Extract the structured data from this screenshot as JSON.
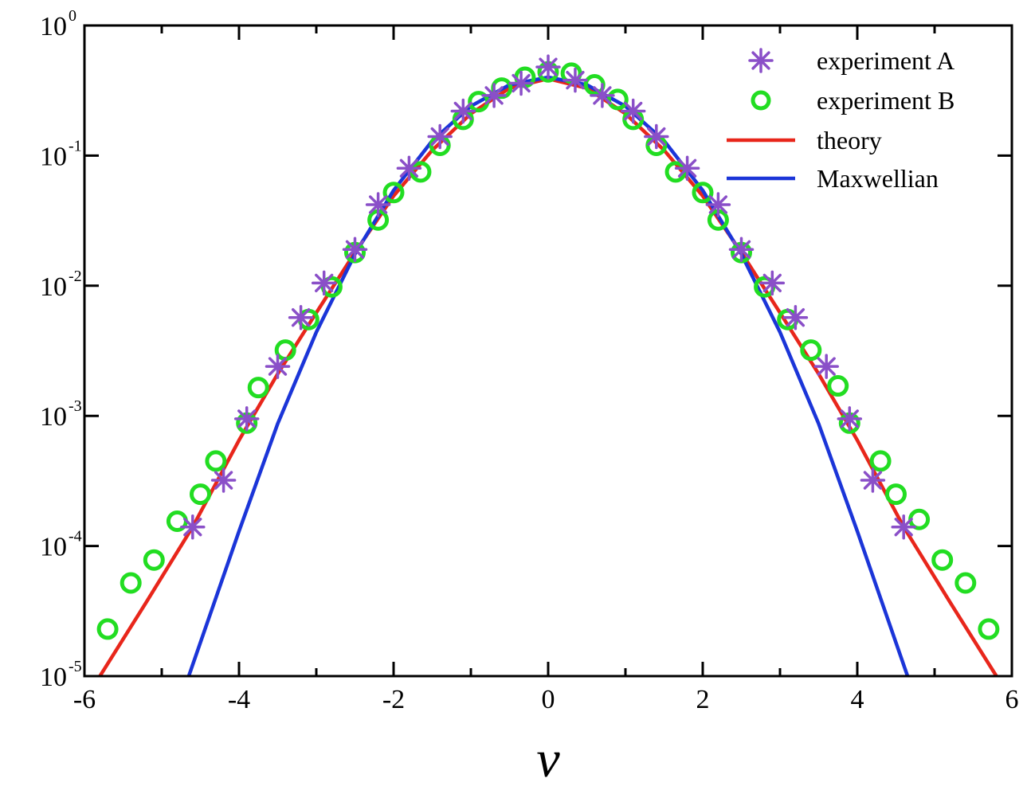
{
  "chart_data": {
    "type": "scatter",
    "title": "",
    "xlabel": "v",
    "ylabel": "",
    "xlim": [
      -6,
      6
    ],
    "ylim": [
      1e-05,
      1
    ],
    "yscale": "log",
    "grid": false,
    "legend_position": "top-right",
    "x_ticks": [
      {
        "value": -6,
        "label": "-6"
      },
      {
        "value": -4,
        "label": "-4"
      },
      {
        "value": -2,
        "label": "-2"
      },
      {
        "value": 0,
        "label": "0"
      },
      {
        "value": 2,
        "label": "2"
      },
      {
        "value": 4,
        "label": "4"
      },
      {
        "value": 6,
        "label": "6"
      }
    ],
    "y_ticks": [
      {
        "value": 1,
        "base": "10",
        "exponent": "0"
      },
      {
        "value": 0.1,
        "base": "10",
        "exponent": "-1"
      },
      {
        "value": 0.01,
        "base": "10",
        "exponent": "-2"
      },
      {
        "value": 0.001,
        "base": "10",
        "exponent": "-3"
      },
      {
        "value": 0.0001,
        "base": "10",
        "exponent": "-4"
      },
      {
        "value": 1e-05,
        "base": "10",
        "exponent": "-5"
      }
    ],
    "series": [
      {
        "name": "experiment A",
        "kind": "markers",
        "marker": "asterisk",
        "color": "#8a4fc8",
        "points": [
          [
            -4.6,
            0.00014
          ],
          [
            -4.2,
            0.00032
          ],
          [
            -3.9,
            0.00095
          ],
          [
            -3.5,
            0.0024
          ],
          [
            -3.2,
            0.0057
          ],
          [
            -2.9,
            0.0105
          ],
          [
            -2.5,
            0.019
          ],
          [
            -2.2,
            0.042
          ],
          [
            -1.8,
            0.08
          ],
          [
            -1.4,
            0.14
          ],
          [
            -1.1,
            0.22
          ],
          [
            -0.7,
            0.29
          ],
          [
            -0.35,
            0.36
          ],
          [
            0.0,
            0.48
          ],
          [
            0.35,
            0.38
          ],
          [
            0.7,
            0.29
          ],
          [
            1.1,
            0.22
          ],
          [
            1.4,
            0.14
          ],
          [
            1.8,
            0.08
          ],
          [
            2.2,
            0.042
          ],
          [
            2.5,
            0.019
          ],
          [
            2.9,
            0.0105
          ],
          [
            3.2,
            0.0057
          ],
          [
            3.6,
            0.0024
          ],
          [
            3.9,
            0.00095
          ],
          [
            4.2,
            0.00032
          ],
          [
            4.6,
            0.00014
          ]
        ]
      },
      {
        "name": "experiment B",
        "kind": "markers",
        "marker": "circle",
        "color": "#22dd22",
        "points": [
          [
            -5.7,
            2.3e-05
          ],
          [
            -5.4,
            5.2e-05
          ],
          [
            -5.1,
            7.8e-05
          ],
          [
            -4.8,
            0.000155
          ],
          [
            -4.5,
            0.00025
          ],
          [
            -4.3,
            0.00045
          ],
          [
            -3.9,
            0.00088
          ],
          [
            -3.75,
            0.00165
          ],
          [
            -3.4,
            0.0032
          ],
          [
            -3.1,
            0.0055
          ],
          [
            -2.8,
            0.0098
          ],
          [
            -2.5,
            0.018
          ],
          [
            -2.2,
            0.032
          ],
          [
            -2.0,
            0.052
          ],
          [
            -1.65,
            0.075
          ],
          [
            -1.4,
            0.12
          ],
          [
            -1.1,
            0.19
          ],
          [
            -0.9,
            0.26
          ],
          [
            -0.6,
            0.33
          ],
          [
            -0.3,
            0.4
          ],
          [
            0.0,
            0.44
          ],
          [
            0.3,
            0.43
          ],
          [
            0.6,
            0.35
          ],
          [
            0.9,
            0.27
          ],
          [
            1.1,
            0.19
          ],
          [
            1.4,
            0.12
          ],
          [
            1.65,
            0.075
          ],
          [
            2.0,
            0.052
          ],
          [
            2.2,
            0.032
          ],
          [
            2.5,
            0.018
          ],
          [
            2.8,
            0.0098
          ],
          [
            3.1,
            0.0055
          ],
          [
            3.4,
            0.0032
          ],
          [
            3.75,
            0.0017
          ],
          [
            3.9,
            0.00088
          ],
          [
            4.3,
            0.00045
          ],
          [
            4.5,
            0.00025
          ],
          [
            4.8,
            0.00016
          ],
          [
            5.1,
            7.8e-05
          ],
          [
            5.4,
            5.2e-05
          ],
          [
            5.7,
            2.3e-05
          ]
        ]
      },
      {
        "name": "theory",
        "kind": "line",
        "color": "#e8261b",
        "points": [
          [
            -5.8,
            1e-05
          ],
          [
            -5.2,
            3.7e-05
          ],
          [
            -4.6,
            0.00014
          ],
          [
            -4.0,
            0.00065
          ],
          [
            -3.5,
            0.0021
          ],
          [
            -3.0,
            0.0062
          ],
          [
            -2.5,
            0.018
          ],
          [
            -2.0,
            0.049
          ],
          [
            -1.5,
            0.11
          ],
          [
            -1.0,
            0.21
          ],
          [
            -0.5,
            0.33
          ],
          [
            0.0,
            0.39
          ],
          [
            0.5,
            0.33
          ],
          [
            1.0,
            0.21
          ],
          [
            1.5,
            0.11
          ],
          [
            2.0,
            0.049
          ],
          [
            2.5,
            0.018
          ],
          [
            3.0,
            0.0062
          ],
          [
            3.5,
            0.0021
          ],
          [
            4.0,
            0.00065
          ],
          [
            4.6,
            0.00014
          ],
          [
            5.2,
            3.7e-05
          ],
          [
            5.8,
            1e-05
          ]
        ]
      },
      {
        "name": "Maxwellian",
        "kind": "line",
        "color": "#1b35d8",
        "points": [
          [
            -4.65,
            1e-05
          ],
          [
            -4.0,
            0.00013
          ],
          [
            -3.5,
            0.00087
          ],
          [
            -3.0,
            0.0044
          ],
          [
            -2.5,
            0.0175
          ],
          [
            -2.0,
            0.054
          ],
          [
            -1.5,
            0.13
          ],
          [
            -1.0,
            0.24
          ],
          [
            -0.5,
            0.35
          ],
          [
            0.0,
            0.4
          ],
          [
            0.5,
            0.35
          ],
          [
            1.0,
            0.24
          ],
          [
            1.5,
            0.13
          ],
          [
            2.0,
            0.054
          ],
          [
            2.5,
            0.0175
          ],
          [
            3.0,
            0.0044
          ],
          [
            3.5,
            0.00087
          ],
          [
            4.0,
            0.00013
          ],
          [
            4.65,
            1e-05
          ]
        ]
      }
    ]
  }
}
